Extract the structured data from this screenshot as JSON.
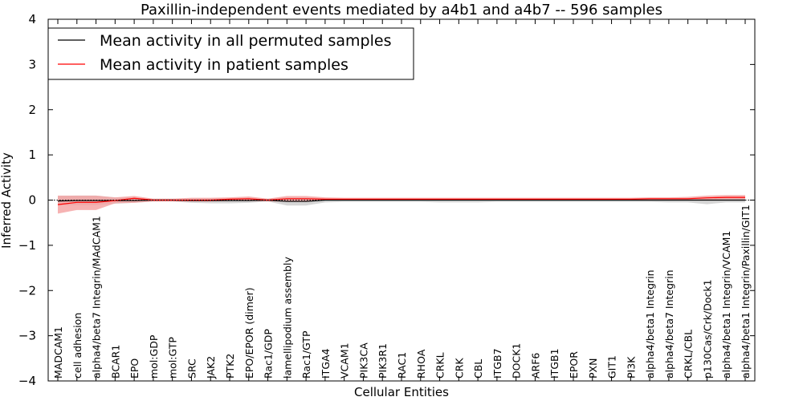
{
  "chart_data": {
    "type": "line",
    "title": "Paxillin-independent events mediated by a4b1 and a4b7 -- 596 samples",
    "xlabel": "Cellular Entities",
    "ylabel": "Inferred Activity",
    "ylim": [
      -4,
      4
    ],
    "yticks": [
      -4,
      -3,
      -2,
      -1,
      0,
      1,
      2,
      3,
      4
    ],
    "ytick_labels": [
      "−4",
      "−3",
      "−2",
      "−1",
      "0",
      "1",
      "2",
      "3",
      "4"
    ],
    "grid": false,
    "legend_position": "top-left",
    "categories": [
      "MADCAM1",
      "cell adhesion",
      "alpha4/beta7 Integrin/MAdCAM1",
      "BCAR1",
      "EPO",
      "mol:GDP",
      "mol:GTP",
      "SRC",
      "JAK2",
      "PTK2",
      "EPO/EPOR (dimer)",
      "Rac1/GDP",
      "lamellipodium assembly",
      "Rac1/GTP",
      "ITGA4",
      "VCAM1",
      "PIK3CA",
      "PIK3R1",
      "RAC1",
      "RHOA",
      "CRKL",
      "CRK",
      "CBL",
      "ITGB7",
      "DOCK1",
      "ARF6",
      "ITGB1",
      "EPOR",
      "PXN",
      "GIT1",
      "PI3K",
      "alpha4/beta1 Integrin",
      "alpha4/beta7 Integrin",
      "CRKL/CBL",
      "p130Cas/Crk/Dock1",
      "alpha4/beta1 Integrin/VCAM1",
      "alpha4/beta1 Integrin/Paxillin/GIT1"
    ],
    "series": [
      {
        "name": "Mean activity in all permuted samples",
        "color": "#000000",
        "values": [
          -0.02,
          -0.01,
          -0.01,
          -0.01,
          -0.01,
          0.0,
          0.0,
          -0.01,
          -0.01,
          -0.01,
          -0.01,
          0.0,
          -0.03,
          -0.03,
          0.0,
          0.0,
          0.0,
          0.0,
          0.0,
          0.0,
          0.0,
          0.0,
          0.0,
          0.0,
          0.0,
          0.0,
          0.0,
          0.0,
          0.0,
          0.0,
          0.0,
          0.0,
          0.0,
          0.0,
          0.0,
          0.0,
          0.0
        ],
        "band_lower": [
          -0.12,
          -0.11,
          -0.11,
          -0.08,
          -0.06,
          -0.03,
          -0.03,
          -0.06,
          -0.07,
          -0.07,
          -0.06,
          -0.03,
          -0.12,
          -0.12,
          -0.05,
          -0.04,
          -0.04,
          -0.04,
          -0.04,
          -0.04,
          -0.05,
          -0.05,
          -0.05,
          -0.04,
          -0.04,
          -0.04,
          -0.04,
          -0.04,
          -0.04,
          -0.04,
          -0.04,
          -0.04,
          -0.05,
          -0.05,
          -0.09,
          -0.05,
          -0.05
        ],
        "band_upper": [
          0.09,
          0.1,
          0.1,
          0.06,
          0.05,
          0.03,
          0.03,
          0.04,
          0.04,
          0.04,
          0.05,
          0.03,
          0.06,
          0.06,
          0.04,
          0.04,
          0.04,
          0.04,
          0.04,
          0.04,
          0.04,
          0.04,
          0.04,
          0.04,
          0.04,
          0.04,
          0.04,
          0.04,
          0.04,
          0.04,
          0.04,
          0.04,
          0.04,
          0.04,
          0.05,
          0.05,
          0.05
        ],
        "band_color": "#c8c8c8"
      },
      {
        "name": "Mean activity in patient samples",
        "color": "#ff0000",
        "values": [
          -0.1,
          -0.05,
          -0.05,
          -0.01,
          0.04,
          0.0,
          0.0,
          0.0,
          0.0,
          0.02,
          0.03,
          0.0,
          0.03,
          0.03,
          0.02,
          0.02,
          0.02,
          0.02,
          0.02,
          0.02,
          0.02,
          0.02,
          0.02,
          0.02,
          0.02,
          0.02,
          0.02,
          0.02,
          0.02,
          0.02,
          0.02,
          0.03,
          0.03,
          0.03,
          0.05,
          0.06,
          0.06
        ],
        "band_lower": [
          -0.3,
          -0.22,
          -0.22,
          -0.07,
          -0.06,
          -0.03,
          -0.03,
          -0.03,
          -0.03,
          -0.02,
          -0.02,
          -0.03,
          -0.03,
          -0.03,
          -0.01,
          0.0,
          0.0,
          0.0,
          0.0,
          0.0,
          0.0,
          0.0,
          0.0,
          0.0,
          0.0,
          0.0,
          0.0,
          0.0,
          0.0,
          0.0,
          0.0,
          0.0,
          0.0,
          0.0,
          0.01,
          0.02,
          0.02
        ],
        "band_upper": [
          0.1,
          0.1,
          0.1,
          0.06,
          0.09,
          0.03,
          0.03,
          0.05,
          0.05,
          0.06,
          0.08,
          0.03,
          0.09,
          0.09,
          0.06,
          0.05,
          0.05,
          0.05,
          0.05,
          0.05,
          0.05,
          0.05,
          0.05,
          0.05,
          0.05,
          0.05,
          0.05,
          0.05,
          0.05,
          0.05,
          0.05,
          0.06,
          0.06,
          0.07,
          0.1,
          0.11,
          0.11
        ],
        "band_color": "#f4a0a0"
      }
    ]
  }
}
